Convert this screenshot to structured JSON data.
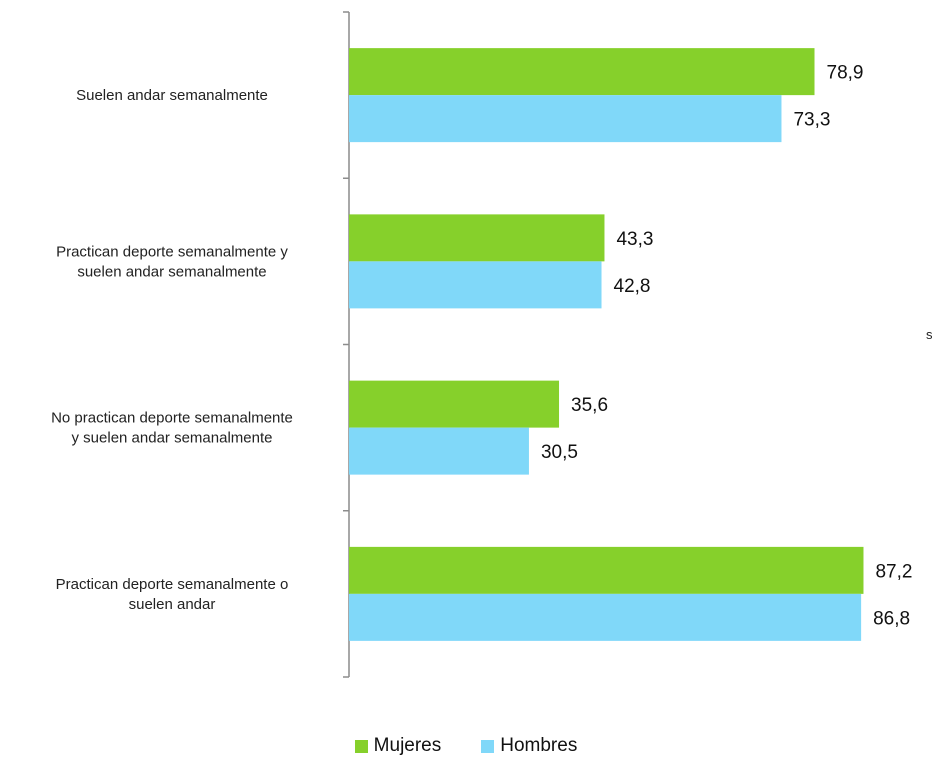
{
  "colors": {
    "mujeres": "#86D02B",
    "hombres": "#80D8F9",
    "axis": "#8C8C8C"
  },
  "stray_text": "s",
  "legend": {
    "mujeres": "Mujeres",
    "hombres": "Hombres"
  },
  "chart_data": {
    "type": "bar",
    "orientation": "horizontal",
    "categories": [
      [
        "Suelen andar semanalmente"
      ],
      [
        "Practican deporte semanalmente y",
        "suelen andar semanalmente"
      ],
      [
        "No practican deporte semanalmente",
        "y suelen andar semanalmente"
      ],
      [
        "Practican deporte  semanalmente o",
        "suelen andar"
      ]
    ],
    "series": [
      {
        "name": "Mujeres",
        "values": [
          78.9,
          43.3,
          35.6,
          87.2
        ],
        "labels": [
          "78,9",
          "43,3",
          "35,6",
          "87,2"
        ]
      },
      {
        "name": "Hombres",
        "values": [
          73.3,
          42.8,
          30.5,
          86.8
        ],
        "labels": [
          "73,3",
          "42,8",
          "30,5",
          "86,8"
        ]
      }
    ],
    "xlim": [
      0,
      100
    ],
    "grid": false,
    "legend_position": "bottom"
  }
}
